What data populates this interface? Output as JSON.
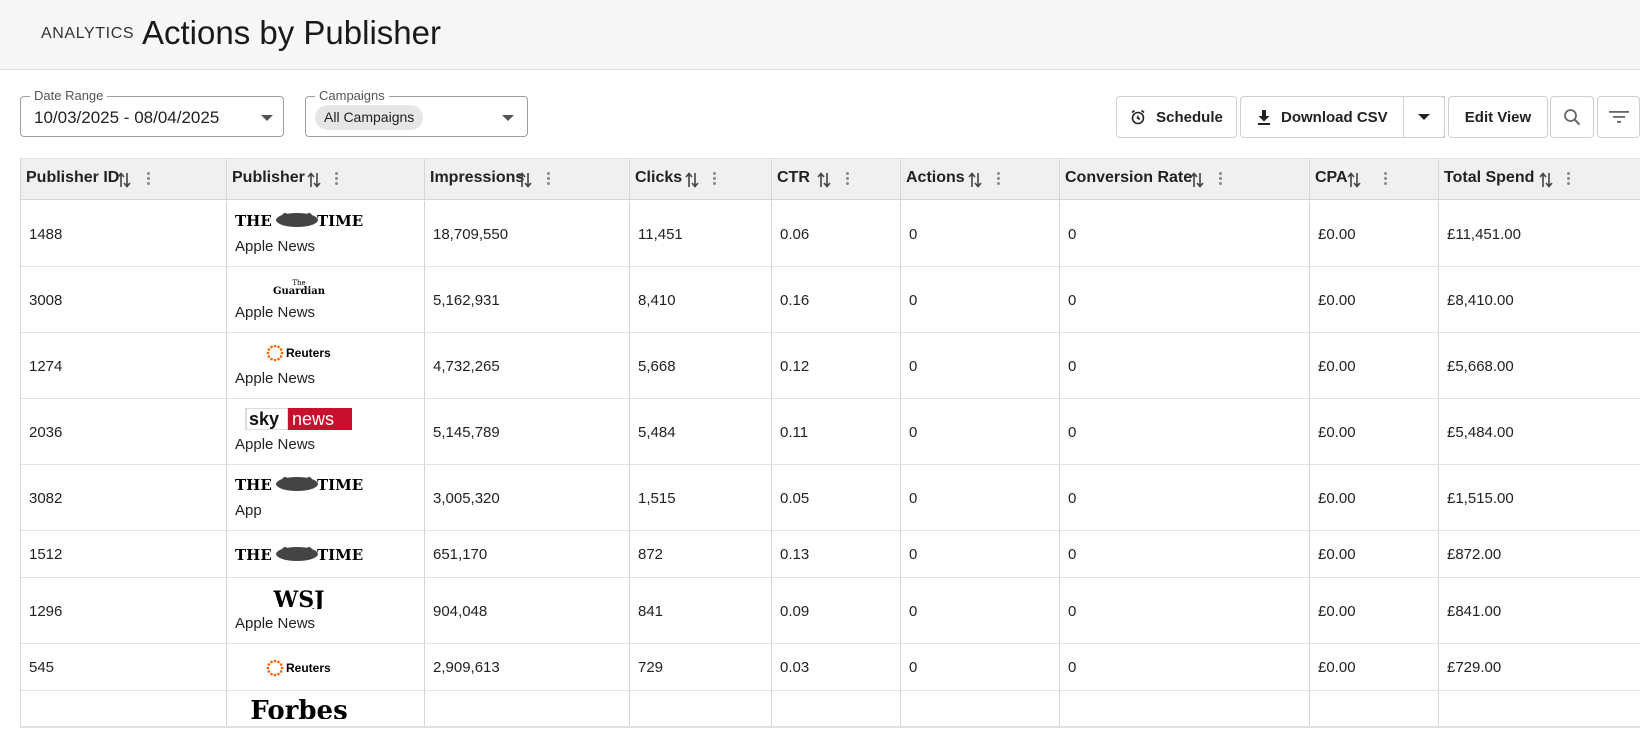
{
  "header": {
    "kicker": "ANALYTICS",
    "title": "Actions by Publisher"
  },
  "filters": {
    "date_range": {
      "legend": "Date Range",
      "value": "10/03/2025 - 08/04/2025"
    },
    "campaigns": {
      "legend": "Campaigns",
      "value": "All Campaigns"
    }
  },
  "toolbar": {
    "schedule_label": "Schedule",
    "download_label": "Download CSV",
    "edit_view_label": "Edit View"
  },
  "table": {
    "columns": [
      "Publisher ID",
      "Publisher",
      "Impressions",
      "Clicks",
      "CTR",
      "Actions",
      "Conversion Rate",
      "CPA",
      "Total Spend"
    ],
    "rows": [
      {
        "id": "1488",
        "logo": "the-times",
        "logo_text": "THE TIMES",
        "platform": "Apple News",
        "impressions": "18,709,550",
        "clicks": "11,451",
        "ctr": "0.06",
        "actions": "0",
        "conversion_rate": "0",
        "cpa": "£0.00",
        "total_spend": "£11,451.00"
      },
      {
        "id": "3008",
        "logo": "the-guardian",
        "logo_text": "The Guardian",
        "platform": "Apple News",
        "impressions": "5,162,931",
        "clicks": "8,410",
        "ctr": "0.16",
        "actions": "0",
        "conversion_rate": "0",
        "cpa": "£0.00",
        "total_spend": "£8,410.00"
      },
      {
        "id": "1274",
        "logo": "reuters",
        "logo_text": "Reuters",
        "platform": "Apple News",
        "impressions": "4,732,265",
        "clicks": "5,668",
        "ctr": "0.12",
        "actions": "0",
        "conversion_rate": "0",
        "cpa": "£0.00",
        "total_spend": "£5,668.00"
      },
      {
        "id": "2036",
        "logo": "sky-news",
        "logo_text": "sky news",
        "platform": "Apple News",
        "impressions": "5,145,789",
        "clicks": "5,484",
        "ctr": "0.11",
        "actions": "0",
        "conversion_rate": "0",
        "cpa": "£0.00",
        "total_spend": "£5,484.00"
      },
      {
        "id": "3082",
        "logo": "the-times",
        "logo_text": "THE TIMES",
        "platform": "App",
        "impressions": "3,005,320",
        "clicks": "1,515",
        "ctr": "0.05",
        "actions": "0",
        "conversion_rate": "0",
        "cpa": "£0.00",
        "total_spend": "£1,515.00"
      },
      {
        "id": "1512",
        "logo": "the-times",
        "logo_text": "THE TIMES",
        "platform": "",
        "impressions": "651,170",
        "clicks": "872",
        "ctr": "0.13",
        "actions": "0",
        "conversion_rate": "0",
        "cpa": "£0.00",
        "total_spend": "£872.00"
      },
      {
        "id": "1296",
        "logo": "wsj",
        "logo_text": "WSJ",
        "platform": "Apple News",
        "impressions": "904,048",
        "clicks": "841",
        "ctr": "0.09",
        "actions": "0",
        "conversion_rate": "0",
        "cpa": "£0.00",
        "total_spend": "£841.00"
      },
      {
        "id": "545",
        "logo": "reuters",
        "logo_text": "Reuters",
        "platform": "",
        "impressions": "2,909,613",
        "clicks": "729",
        "ctr": "0.03",
        "actions": "0",
        "conversion_rate": "0",
        "cpa": "£0.00",
        "total_spend": "£729.00"
      },
      {
        "id": "",
        "logo": "forbes",
        "logo_text": "Forbes",
        "platform": "",
        "impressions": "",
        "clicks": "",
        "ctr": "",
        "actions": "",
        "conversion_rate": "",
        "cpa": "",
        "total_spend": ""
      }
    ]
  },
  "colors": {
    "sky_red": "#c8102e",
    "reuters_orange": "#fa6400",
    "header_bg": "#f7f7f7"
  }
}
